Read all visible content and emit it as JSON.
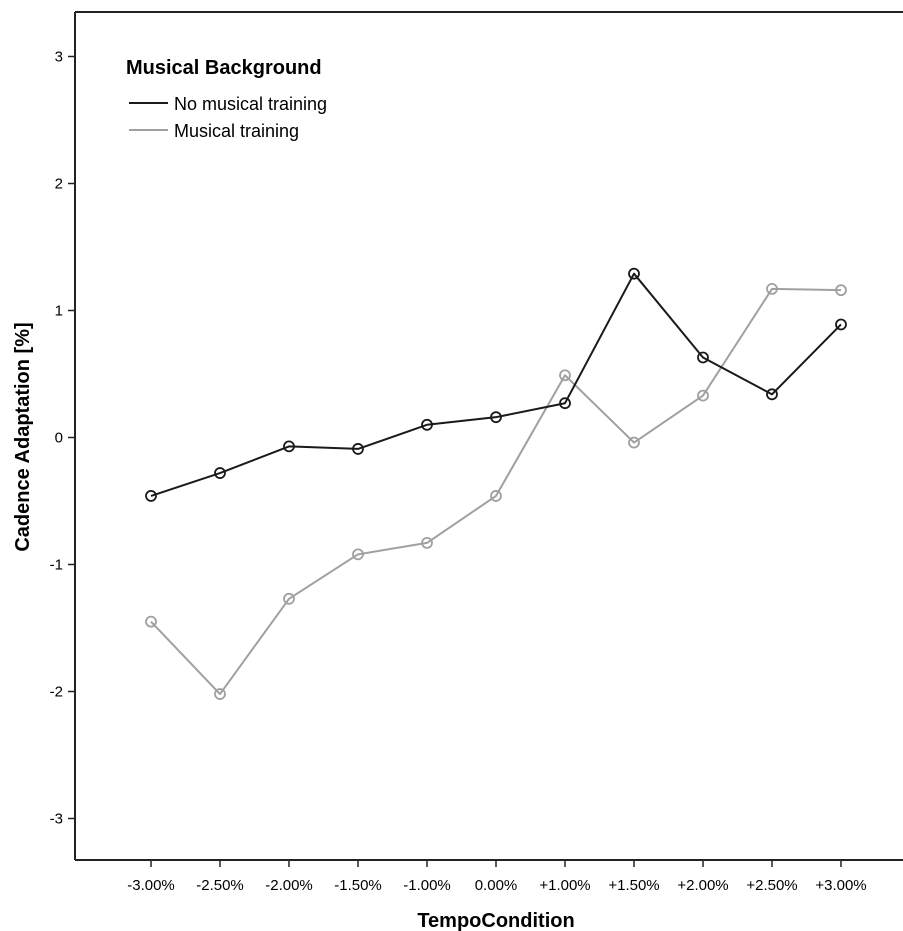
{
  "chart_data": {
    "type": "line",
    "title": "",
    "xlabel": "TempoCondition",
    "ylabel": "Cadence Adaptation [%]",
    "ylim": [
      -3.3,
      3.35
    ],
    "yticks": [
      "-3",
      "-2",
      "-1",
      "0",
      "1",
      "2",
      "3"
    ],
    "categories": [
      "-3.00%",
      "-2.50%",
      "-2.00%",
      "-1.50%",
      "-1.00%",
      "0.00%",
      "+1.00%",
      "+1.50%",
      "+2.00%",
      "+2.50%",
      "+3.00%"
    ],
    "grid": false,
    "legend": {
      "title": "Musical Background",
      "placement": "top-left"
    },
    "series": [
      {
        "name": "No musical training",
        "color": "#1a1a1a",
        "marker": "open-circle",
        "values": [
          -0.46,
          -0.28,
          -0.07,
          -0.09,
          0.1,
          0.16,
          0.27,
          1.29,
          0.63,
          0.34,
          0.89
        ]
      },
      {
        "name": "Musical training",
        "color": "#a0a0a0",
        "marker": "open-circle",
        "values": [
          -1.45,
          -2.02,
          -1.27,
          -0.92,
          -0.83,
          -0.46,
          0.49,
          -0.04,
          0.33,
          1.17,
          1.16
        ]
      }
    ]
  }
}
